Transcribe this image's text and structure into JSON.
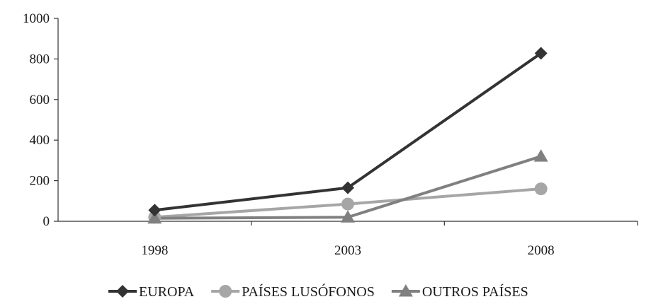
{
  "chart_data": {
    "type": "line",
    "categories": [
      "1998",
      "2003",
      "2008"
    ],
    "series": [
      {
        "name": "EUROPA",
        "values": [
          55,
          165,
          828
        ],
        "color": "#333333",
        "marker": "diamond"
      },
      {
        "name": "PAÍSES LUSÓFONOS",
        "values": [
          20,
          85,
          160
        ],
        "color": "#a6a6a6",
        "marker": "circle"
      },
      {
        "name": "OUTROS PAÍSES",
        "values": [
          15,
          20,
          320
        ],
        "color": "#808080",
        "marker": "triangle"
      }
    ],
    "ylim": [
      0,
      1000
    ],
    "yticks": [
      "0",
      "200",
      "400",
      "600",
      "800",
      "1000"
    ],
    "grid": false,
    "legend_position": "bottom"
  }
}
